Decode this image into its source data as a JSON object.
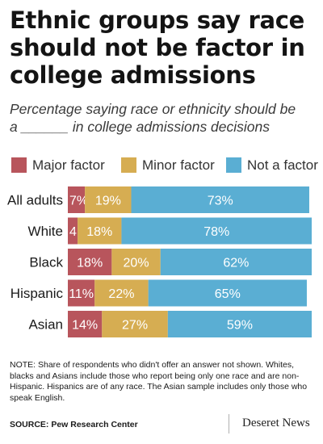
{
  "title": "Ethnic groups say race should not be factor in college admissions",
  "subtitle_line1": "Percentage saying race or ethnicity should be",
  "subtitle_line2": "a ______ in college admissions decisions",
  "legend": [
    {
      "label": "Major factor",
      "color": "#b8555c"
    },
    {
      "label": "Minor factor",
      "color": "#d6ad52"
    },
    {
      "label": "Not a factor",
      "color": "#5aaed3"
    }
  ],
  "chart_data": {
    "type": "bar",
    "orientation": "horizontal",
    "stacked": true,
    "categories": [
      "All adults",
      "White",
      "Black",
      "Hispanic",
      "Asian"
    ],
    "series": [
      {
        "name": "Major factor",
        "values": [
          7,
          4,
          18,
          11,
          14
        ],
        "labels": [
          "7%",
          "4",
          "18%",
          "11%",
          "14%"
        ]
      },
      {
        "name": "Minor factor",
        "values": [
          19,
          18,
          20,
          22,
          27
        ],
        "labels": [
          "19%",
          "18%",
          "20%",
          "22%",
          "27%"
        ]
      },
      {
        "name": "Not a factor",
        "values": [
          73,
          78,
          62,
          65,
          59
        ],
        "labels": [
          "73%",
          "78%",
          "62%",
          "65%",
          "59%"
        ]
      }
    ],
    "xlim": [
      0,
      100
    ],
    "grid": false,
    "legend_position": "top"
  },
  "note": "NOTE: Share of respondents who didn't offer an answer not shown. Whites, blacks and Asians include those who report being only one race and are non-Hispanic. Hispanics are of any race. The Asian sample includes only those who speak English.",
  "source": "SOURCE: Pew Research Center",
  "brand": "Deseret News"
}
